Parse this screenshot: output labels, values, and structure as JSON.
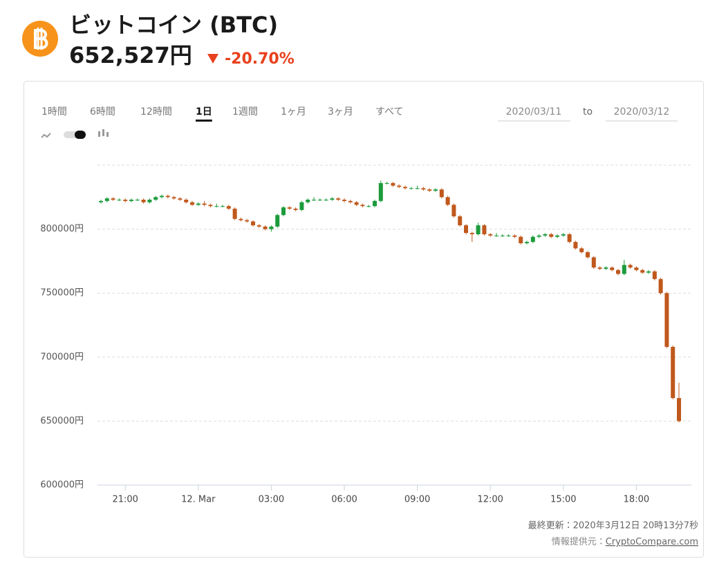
{
  "header": {
    "title": "ビットコイン (BTC)",
    "price": "652,527円",
    "change": "-20.70%"
  },
  "controls": {
    "ranges": [
      "1時間",
      "6時間",
      "12時間",
      "1日",
      "1週間",
      "1ヶ月",
      "3ヶ月",
      "すべて"
    ],
    "active_range": 3,
    "date_from": "2020/03/11",
    "date_sep": "to",
    "date_to": "2020/03/12"
  },
  "chart_data": {
    "type": "candlestick",
    "x": [
      "20:00",
      "20:15",
      "20:30",
      "20:45",
      "21:00",
      "21:15",
      "21:30",
      "21:45",
      "22:00",
      "22:15",
      "22:30",
      "22:45",
      "23:00",
      "23:15",
      "23:30",
      "23:45",
      "00:00",
      "00:15",
      "00:30",
      "00:45",
      "01:00",
      "01:15",
      "01:30",
      "01:45",
      "02:00",
      "02:15",
      "02:30",
      "02:45",
      "03:00",
      "03:15",
      "03:30",
      "03:45",
      "04:00",
      "04:15",
      "04:30",
      "04:45",
      "05:00",
      "05:15",
      "05:30",
      "05:45",
      "06:00",
      "06:15",
      "06:30",
      "06:45",
      "07:00",
      "07:15",
      "07:30",
      "07:45",
      "08:00",
      "08:15",
      "08:30",
      "08:45",
      "09:00",
      "09:15",
      "09:30",
      "09:45",
      "10:00",
      "10:15",
      "10:30",
      "10:45",
      "11:00",
      "11:15",
      "11:30",
      "11:45",
      "12:00",
      "12:15",
      "12:30",
      "12:45",
      "13:00",
      "13:15",
      "13:30",
      "13:45",
      "14:00",
      "14:15",
      "14:30",
      "14:45",
      "15:00",
      "15:15",
      "15:30",
      "15:45",
      "16:00",
      "16:15",
      "16:30",
      "16:45",
      "17:00",
      "17:15",
      "17:30",
      "17:45",
      "18:00",
      "18:15",
      "18:30",
      "18:45",
      "19:00",
      "19:15",
      "19:30",
      "19:45"
    ],
    "open": [
      821000,
      822000,
      824000,
      823000,
      823000,
      822000,
      823000,
      823000,
      821000,
      823000,
      825000,
      826000,
      825000,
      824000,
      823000,
      821000,
      819000,
      820000,
      819000,
      818000,
      818000,
      818000,
      816000,
      808000,
      807000,
      806000,
      803000,
      802000,
      800000,
      802000,
      811000,
      817000,
      816000,
      815000,
      821000,
      823000,
      823000,
      823000,
      823000,
      824000,
      823000,
      822000,
      821000,
      819000,
      818000,
      818000,
      822000,
      836000,
      836000,
      834000,
      833000,
      832000,
      832000,
      832000,
      831000,
      830000,
      831000,
      825000,
      819000,
      810000,
      803000,
      797000,
      796000,
      803000,
      796000,
      795000,
      795000,
      795000,
      795000,
      794000,
      789000,
      790000,
      794000,
      795000,
      796000,
      794000,
      795000,
      796000,
      790000,
      785000,
      782000,
      778000,
      770000,
      769000,
      770000,
      768000,
      765000,
      772000,
      770000,
      768000,
      766000,
      767000,
      761000,
      750000,
      708000,
      668000
    ],
    "high": [
      823000,
      825000,
      825000,
      824000,
      824000,
      824000,
      824000,
      824000,
      824000,
      826000,
      827000,
      827000,
      826000,
      825000,
      824000,
      822000,
      821000,
      822000,
      820000,
      820000,
      819000,
      819000,
      817000,
      809000,
      808000,
      807000,
      804000,
      803000,
      803000,
      812000,
      818000,
      818000,
      817000,
      822000,
      824000,
      825000,
      824000,
      824000,
      825000,
      825000,
      824000,
      823000,
      822000,
      820000,
      819000,
      823000,
      838000,
      837000,
      837000,
      835000,
      834000,
      833000,
      834000,
      833000,
      832000,
      832000,
      832000,
      826000,
      820000,
      811000,
      804000,
      798000,
      805000,
      804000,
      797000,
      797000,
      796000,
      796000,
      796000,
      795000,
      791000,
      795000,
      796000,
      797000,
      797000,
      796000,
      797000,
      797000,
      791000,
      786000,
      783000,
      779000,
      771000,
      771000,
      771000,
      769000,
      776000,
      773000,
      771000,
      769000,
      768000,
      768000,
      762000,
      751000,
      709000,
      680000
    ],
    "low": [
      820000,
      821000,
      822000,
      822000,
      821000,
      821000,
      822000,
      820000,
      820000,
      822000,
      824000,
      824000,
      823000,
      822000,
      820000,
      818000,
      818000,
      818000,
      817000,
      817000,
      817000,
      815000,
      807000,
      806000,
      805000,
      802000,
      801000,
      799000,
      798000,
      801000,
      810000,
      815000,
      814000,
      814000,
      820000,
      822000,
      822000,
      822000,
      822000,
      822000,
      821000,
      820000,
      818000,
      817000,
      817000,
      817000,
      821000,
      835000,
      833000,
      832000,
      831000,
      831000,
      831000,
      830000,
      829000,
      829000,
      824000,
      818000,
      809000,
      802000,
      796000,
      790000,
      795000,
      795000,
      794000,
      794000,
      794000,
      794000,
      793000,
      788000,
      788000,
      789000,
      793000,
      794000,
      793000,
      793000,
      794000,
      789000,
      784000,
      781000,
      777000,
      769000,
      768000,
      768000,
      767000,
      764000,
      764000,
      769000,
      767000,
      765000,
      765000,
      760000,
      749000,
      707000,
      667000,
      649000
    ],
    "close": [
      822000,
      824000,
      823000,
      823000,
      822000,
      823000,
      823000,
      821000,
      823000,
      825000,
      826000,
      825000,
      824000,
      823000,
      821000,
      819000,
      820000,
      819000,
      818000,
      818000,
      818000,
      816000,
      808000,
      807000,
      806000,
      803000,
      802000,
      800000,
      802000,
      811000,
      817000,
      816000,
      815000,
      821000,
      823000,
      823000,
      823000,
      823000,
      824000,
      823000,
      822000,
      821000,
      819000,
      818000,
      818000,
      822000,
      836000,
      836000,
      834000,
      833000,
      832000,
      832000,
      832000,
      831000,
      830000,
      831000,
      825000,
      819000,
      810000,
      803000,
      797000,
      796000,
      803000,
      796000,
      795000,
      795000,
      795000,
      795000,
      794000,
      789000,
      790000,
      794000,
      795000,
      796000,
      794000,
      795000,
      796000,
      790000,
      785000,
      782000,
      778000,
      770000,
      769000,
      770000,
      768000,
      765000,
      772000,
      770000,
      768000,
      766000,
      767000,
      761000,
      750000,
      708000,
      668000,
      650000
    ],
    "up_color": "#1c9b3c",
    "down_color": "#c0581c",
    "ylim": [
      600000,
      850000
    ],
    "yticks": [
      {
        "value": 600000,
        "label": "600000円"
      },
      {
        "value": 650000,
        "label": "650000円"
      },
      {
        "value": 700000,
        "label": "700000円"
      },
      {
        "value": 750000,
        "label": "750000円"
      },
      {
        "value": 800000,
        "label": "800000円"
      }
    ],
    "xticks": [
      "21:00",
      {
        "value": "00:00",
        "label": "12. Mar"
      },
      "03:00",
      "06:00",
      "09:00",
      "12:00",
      "15:00",
      "18:00"
    ],
    "grid": true
  },
  "footer": {
    "updated": "最終更新：2020年3月12日 20時13分7秒",
    "source_prefix": "情報提供元：",
    "source_link": "CryptoCompare.com"
  }
}
